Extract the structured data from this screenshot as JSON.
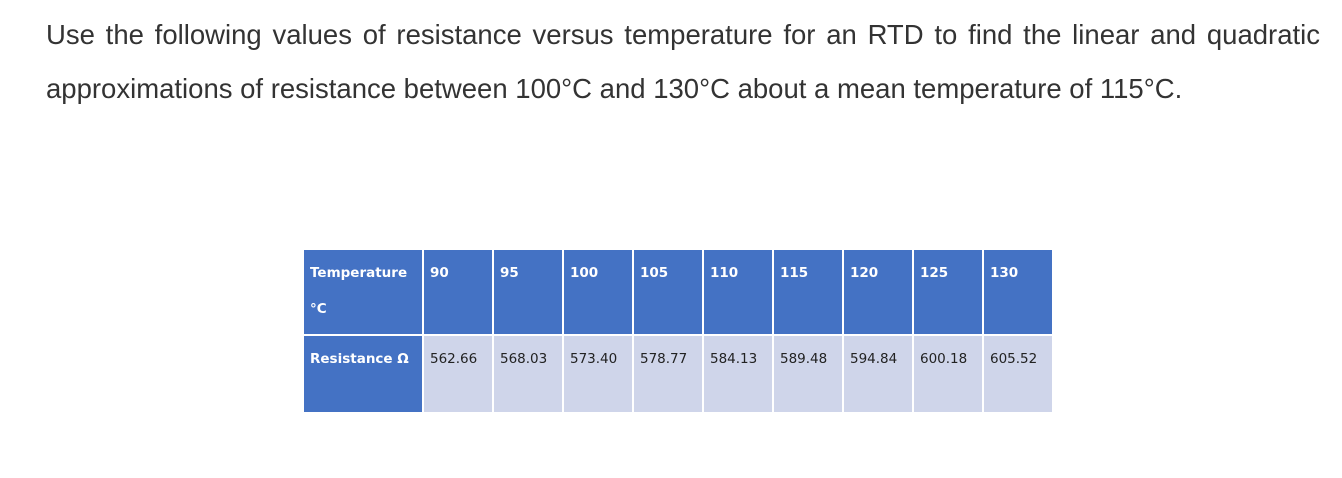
{
  "paragraph": "Use the following values of resistance versus temperature for an RTD to find the linear and quadratic approximations of resistance between 100°C and 130°C about a mean temperature of 115°C.",
  "table": {
    "rows": [
      [
        "Temperature °C",
        "90",
        "95",
        "100",
        "105",
        "110",
        "115",
        "120",
        "125",
        "130"
      ],
      [
        "Resistance Ω",
        "562.66",
        "568.03",
        "573.40",
        "578.77",
        "584.13",
        "589.48",
        "594.84",
        "600.18",
        "605.52"
      ]
    ]
  }
}
